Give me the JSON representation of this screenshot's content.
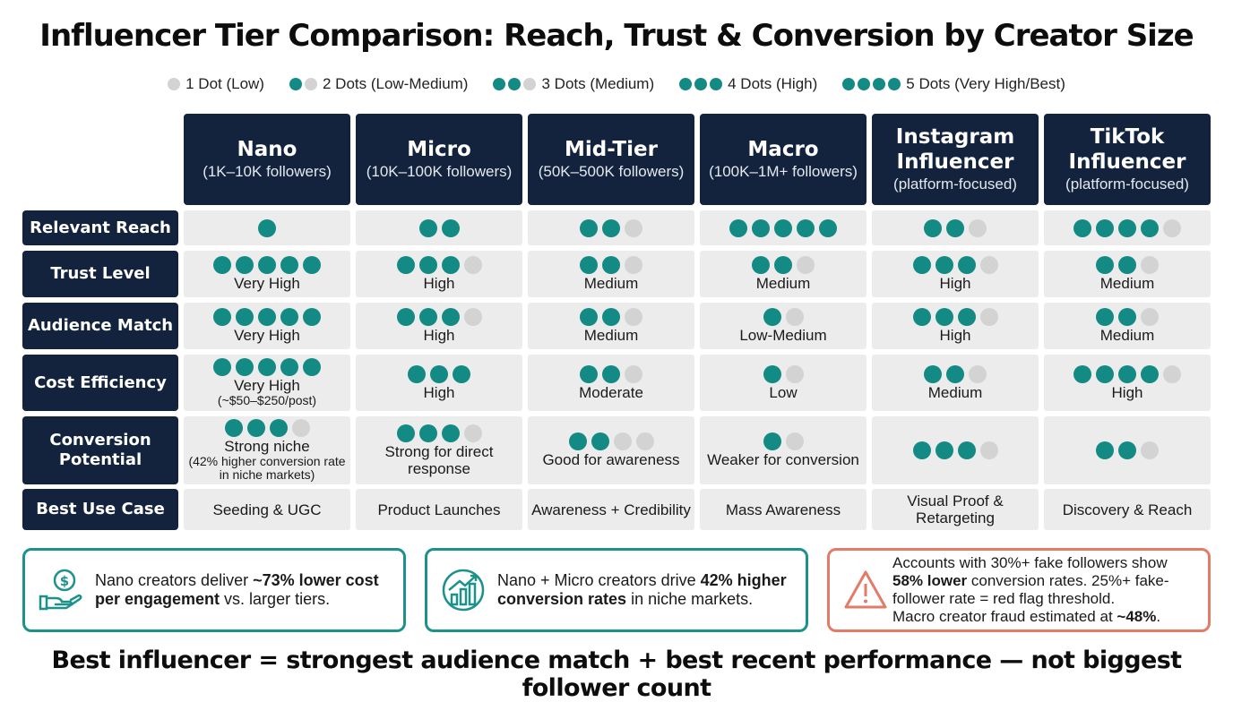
{
  "title": "Influencer Tier Comparison: Reach, Trust & Conversion by Creator Size",
  "colors": {
    "dot_on": "#138a84",
    "dot_off": "#d3d3d3",
    "header_bg": "#13233d",
    "cell_bg": "#ececec",
    "accent_teal": "#1d918b",
    "accent_red": "#e27b68"
  },
  "legend": [
    {
      "filled": 0,
      "total": 1,
      "label": "1 Dot (Low)"
    },
    {
      "filled": 1,
      "total": 2,
      "label": "2 Dots (Low-Medium)"
    },
    {
      "filled": 2,
      "total": 3,
      "label": "3 Dots (Medium)"
    },
    {
      "filled": 3,
      "total": 3,
      "label": "4 Dots (High)"
    },
    {
      "filled": 4,
      "total": 4,
      "label": "5 Dots (Very High/Best)"
    }
  ],
  "columns": [
    {
      "name": "Nano",
      "sub": "(1K–10K followers)"
    },
    {
      "name": "Micro",
      "sub": "(10K–100K followers)"
    },
    {
      "name": "Mid-Tier",
      "sub": "(50K–500K followers)"
    },
    {
      "name": "Macro",
      "sub": "(100K–1M+ followers)"
    },
    {
      "name": "Instagram Influencer",
      "sub": "(platform-focused)"
    },
    {
      "name": "TikTok Influencer",
      "sub": "(platform-focused)"
    }
  ],
  "rows": [
    {
      "label": "Relevant Reach",
      "cells": [
        {
          "filled": 1,
          "total": 1
        },
        {
          "filled": 2,
          "total": 2
        },
        {
          "filled": 2,
          "total": 3
        },
        {
          "filled": 5,
          "total": 5
        },
        {
          "filled": 2,
          "total": 3
        },
        {
          "filled": 4,
          "total": 5
        }
      ]
    },
    {
      "label": "Trust Level",
      "cells": [
        {
          "filled": 5,
          "total": 5,
          "text": "Very High"
        },
        {
          "filled": 3,
          "total": 4,
          "text": "High"
        },
        {
          "filled": 2,
          "total": 3,
          "text": "Medium"
        },
        {
          "filled": 2,
          "total": 3,
          "text": "Medium"
        },
        {
          "filled": 3,
          "total": 4,
          "text": "High"
        },
        {
          "filled": 2,
          "total": 3,
          "text": "Medium"
        }
      ]
    },
    {
      "label": "Audience Match",
      "cells": [
        {
          "filled": 5,
          "total": 5,
          "text": "Very High"
        },
        {
          "filled": 3,
          "total": 4,
          "text": "High"
        },
        {
          "filled": 2,
          "total": 3,
          "text": "Medium"
        },
        {
          "filled": 1,
          "total": 2,
          "text": "Low-Medium"
        },
        {
          "filled": 3,
          "total": 4,
          "text": "High"
        },
        {
          "filled": 2,
          "total": 3,
          "text": "Medium"
        }
      ]
    },
    {
      "label": "Cost Efficiency",
      "cells": [
        {
          "filled": 5,
          "total": 5,
          "text": "Very High",
          "note": "(~$50–$250/post)"
        },
        {
          "filled": 3,
          "total": 3,
          "text": "High"
        },
        {
          "filled": 2,
          "total": 3,
          "text": "Moderate"
        },
        {
          "filled": 1,
          "total": 2,
          "text": "Low"
        },
        {
          "filled": 2,
          "total": 3,
          "text": "Medium"
        },
        {
          "filled": 4,
          "total": 5,
          "text": "High"
        }
      ]
    },
    {
      "label": "Conversion Potential",
      "cells": [
        {
          "filled": 3,
          "total": 4,
          "text": "Strong niche",
          "note": "(42% higher conversion rate in niche markets)"
        },
        {
          "filled": 3,
          "total": 4,
          "text": "Strong for direct response"
        },
        {
          "filled": 2,
          "total": 4,
          "text": "Good for awareness"
        },
        {
          "filled": 1,
          "total": 2,
          "text": "Weaker for conversion"
        },
        {
          "filled": 3,
          "total": 4
        },
        {
          "filled": 2,
          "total": 3
        }
      ]
    }
  ],
  "best_use": {
    "label": "Best Use Case",
    "cells": [
      "Seeding & UGC",
      "Product Launches",
      "Awareness + Credibility",
      "Mass Awareness",
      "Visual Proof & Retargeting",
      "Discovery & Reach"
    ]
  },
  "callouts": [
    {
      "icon": "money-hand-icon",
      "pre": "Nano creators deliver ",
      "bold": "~73% lower cost per engagement",
      "post": " vs. larger tiers."
    },
    {
      "icon": "growth-chart-icon",
      "pre": "Nano + Micro creators drive ",
      "bold": "42% higher conversion rates",
      "post": " in niche markets."
    },
    {
      "icon": "warning-icon",
      "line1": "Accounts with 30%+ fake followers show",
      "bold1": "58% lower",
      "line2": " conversion rates. 25%+ fake-follower rate = red flag threshold.",
      "line3": "Macro creator fraud estimated at ",
      "bold2": "~48%",
      "line4": "."
    }
  ],
  "footer": "Best influencer = strongest audience match + best recent performance — not biggest follower count"
}
